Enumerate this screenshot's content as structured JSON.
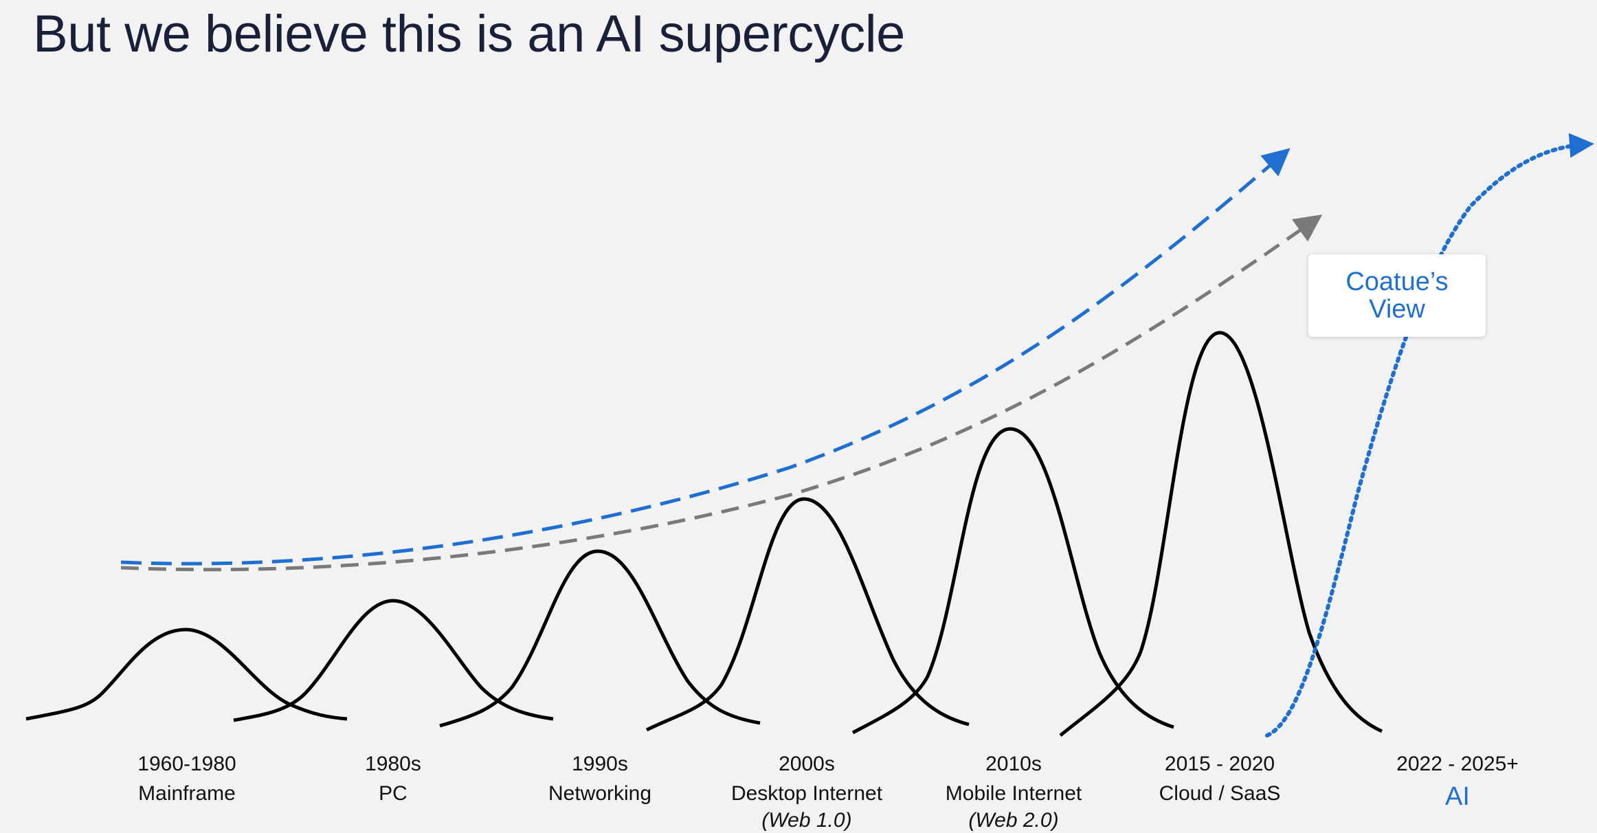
{
  "title": "But we believe this is an AI supercycle",
  "callout": {
    "label": "Coatue’s View"
  },
  "colors": {
    "background": "#f2f2f2",
    "title": "#1a1f3a",
    "accent_blue": "#1f6fd1",
    "trend_gray": "#7a7a7a",
    "curve_black": "#000000"
  },
  "eras": [
    {
      "period": "1960-1980",
      "name": "Mainframe",
      "sub": ""
    },
    {
      "period": "1980s",
      "name": "PC",
      "sub": ""
    },
    {
      "period": "1990s",
      "name": "Networking",
      "sub": ""
    },
    {
      "period": "2000s",
      "name": "Desktop Internet",
      "sub": "(Web 1.0)"
    },
    {
      "period": "2010s",
      "name": "Mobile Internet",
      "sub": "(Web 2.0)"
    },
    {
      "period": "2015 - 2020",
      "name": "Cloud / SaaS",
      "sub": ""
    },
    {
      "period": "2022 - 2025+",
      "name": "AI",
      "sub": ""
    }
  ]
}
